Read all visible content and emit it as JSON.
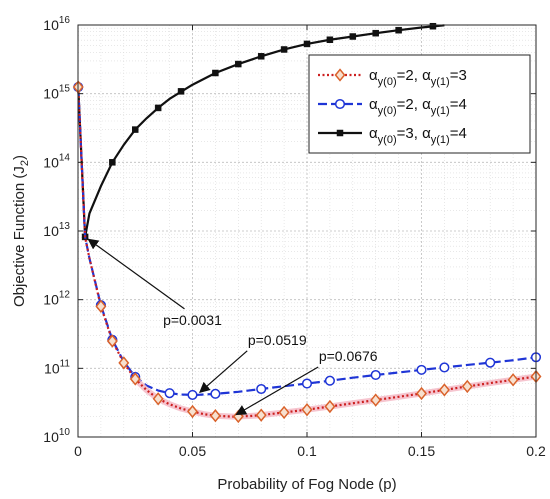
{
  "chart_data": {
    "type": "line",
    "title": "",
    "xlabel": "Probability of Fog Node (p)",
    "ylabel": "Objective Function (J",
    "ylabel_sub": "2",
    "ylabel_tail": ")",
    "yscale": "log",
    "xlim": [
      0,
      0.2
    ],
    "ylim": [
      10000000000.0,
      1e+16
    ],
    "grid": true,
    "minor_grid": true,
    "legend_position": "top-right",
    "x_ticks": [
      {
        "value": 0,
        "label": "0"
      },
      {
        "value": 0.05,
        "label": "0.05"
      },
      {
        "value": 0.1,
        "label": "0.1"
      },
      {
        "value": 0.15,
        "label": "0.15"
      },
      {
        "value": 0.2,
        "label": "0.2"
      }
    ],
    "y_ticks": [
      {
        "exp": 10,
        "base": "10",
        "sup": "10"
      },
      {
        "exp": 11,
        "base": "10",
        "sup": "11"
      },
      {
        "exp": 12,
        "base": "10",
        "sup": "12"
      },
      {
        "exp": 13,
        "base": "10",
        "sup": "13"
      },
      {
        "exp": 14,
        "base": "10",
        "sup": "14"
      },
      {
        "exp": 15,
        "base": "10",
        "sup": "15"
      },
      {
        "exp": 16,
        "base": "10",
        "sup": "16"
      }
    ],
    "series": [
      {
        "legend_label": {
          "alpha": "α",
          "sub1": "y(0)",
          "val1": "=2, ",
          "sub2": "y(1)",
          "val2": "=3"
        },
        "color": "#cc1f1f",
        "marker_color": "#d9622b",
        "marker": "diamond",
        "dash": "dotted",
        "highlight": "#f4b6c3",
        "points": [
          [
            0.0001,
            1250000000000000.0
          ],
          [
            0.0031,
            8200000000000.0
          ],
          [
            0.005,
            4000000000000.0
          ],
          [
            0.01,
            800000000000.0
          ],
          [
            0.015,
            250000000000.0
          ],
          [
            0.02,
            120000000000.0
          ],
          [
            0.025,
            70000000000.0
          ],
          [
            0.03,
            48000000000.0
          ],
          [
            0.035,
            36000000000.0
          ],
          [
            0.04,
            30000000000.0
          ],
          [
            0.045,
            26000000000.0
          ],
          [
            0.05,
            23500000000.0
          ],
          [
            0.055,
            21500000000.0
          ],
          [
            0.06,
            20400000000.0
          ],
          [
            0.0676,
            19800000000.0
          ],
          [
            0.075,
            20200000000.0
          ],
          [
            0.08,
            20800000000.0
          ],
          [
            0.09,
            22800000000.0
          ],
          [
            0.1,
            25000000000.0
          ],
          [
            0.11,
            27800000000.0
          ],
          [
            0.12,
            31000000000.0
          ],
          [
            0.13,
            34500000000.0
          ],
          [
            0.14,
            38500000000.0
          ],
          [
            0.15,
            43000000000.0
          ],
          [
            0.16,
            48500000000.0
          ],
          [
            0.17,
            54500000000.0
          ],
          [
            0.18,
            61000000000.0
          ],
          [
            0.19,
            68000000000.0
          ],
          [
            0.2,
            76000000000.0
          ]
        ],
        "marker_points": [
          [
            0.0001,
            1250000000000000.0
          ],
          [
            0.01,
            800000000000.0
          ],
          [
            0.015,
            250000000000.0
          ],
          [
            0.02,
            120000000000.0
          ],
          [
            0.025,
            70000000000.0
          ],
          [
            0.035,
            36000000000.0
          ],
          [
            0.05,
            23500000000.0
          ],
          [
            0.06,
            20400000000.0
          ],
          [
            0.07,
            19900000000.0
          ],
          [
            0.08,
            20800000000.0
          ],
          [
            0.09,
            22800000000.0
          ],
          [
            0.1,
            25000000000.0
          ],
          [
            0.11,
            27800000000.0
          ],
          [
            0.13,
            34500000000.0
          ],
          [
            0.15,
            43000000000.0
          ],
          [
            0.16,
            48500000000.0
          ],
          [
            0.17,
            54500000000.0
          ],
          [
            0.19,
            68000000000.0
          ],
          [
            0.2,
            76000000000.0
          ]
        ]
      },
      {
        "legend_label": {
          "alpha": "α",
          "sub1": "y(0)",
          "val1": "=2, ",
          "sub2": "y(1)",
          "val2": "=4"
        },
        "color": "#1f35d6",
        "marker_color": "#1f35d6",
        "marker": "circle",
        "dash": "dashed",
        "highlight": "",
        "points": [
          [
            0.0001,
            1250000000000000.0
          ],
          [
            0.0031,
            8200000000000.0
          ],
          [
            0.005,
            4000000000000.0
          ],
          [
            0.01,
            830000000000.0
          ],
          [
            0.015,
            260000000000.0
          ],
          [
            0.02,
            125000000000.0
          ],
          [
            0.025,
            75000000000.0
          ],
          [
            0.03,
            56000000000.0
          ],
          [
            0.035,
            47500000000.0
          ],
          [
            0.04,
            43500000000.0
          ],
          [
            0.045,
            41500000000.0
          ],
          [
            0.0519,
            41000000000.0
          ],
          [
            0.06,
            42500000000.0
          ],
          [
            0.07,
            45500000000.0
          ],
          [
            0.08,
            50000000000.0
          ],
          [
            0.09,
            55000000000.0
          ],
          [
            0.1,
            60000000000.0
          ],
          [
            0.11,
            66000000000.0
          ],
          [
            0.12,
            73000000000.0
          ],
          [
            0.13,
            80000000000.0
          ],
          [
            0.14,
            87000000000.0
          ],
          [
            0.15,
            95000000000.0
          ],
          [
            0.16,
            103000000000.0
          ],
          [
            0.17,
            112000000000.0
          ],
          [
            0.18,
            121000000000.0
          ],
          [
            0.19,
            131000000000.0
          ],
          [
            0.2,
            145000000000.0
          ]
        ],
        "marker_points": [
          [
            0.0001,
            1250000000000000.0
          ],
          [
            0.01,
            830000000000.0
          ],
          [
            0.015,
            260000000000.0
          ],
          [
            0.025,
            75000000000.0
          ],
          [
            0.04,
            43500000000.0
          ],
          [
            0.05,
            41000000000.0
          ],
          [
            0.06,
            42500000000.0
          ],
          [
            0.08,
            50000000000.0
          ],
          [
            0.1,
            60000000000.0
          ],
          [
            0.11,
            66000000000.0
          ],
          [
            0.13,
            80000000000.0
          ],
          [
            0.15,
            95000000000.0
          ],
          [
            0.16,
            103000000000.0
          ],
          [
            0.18,
            121000000000.0
          ],
          [
            0.2,
            145000000000.0
          ]
        ]
      },
      {
        "legend_label": {
          "alpha": "α",
          "sub1": "y(0)",
          "val1": "=3, ",
          "sub2": "y(1)",
          "val2": "=4"
        },
        "color": "#111111",
        "marker_color": "#111111",
        "marker": "square",
        "dash": "solid",
        "highlight": "",
        "points": [
          [
            0.0001,
            1250000000000000.0
          ],
          [
            0.0031,
            8200000000000.0
          ],
          [
            0.005,
            18000000000000.0
          ],
          [
            0.01,
            45000000000000.0
          ],
          [
            0.015,
            100000000000000.0
          ],
          [
            0.02,
            180000000000000.0
          ],
          [
            0.025,
            300000000000000.0
          ],
          [
            0.03,
            440000000000000.0
          ],
          [
            0.035,
            620000000000000.0
          ],
          [
            0.04,
            840000000000000.0
          ],
          [
            0.05,
            1350000000000000.0
          ],
          [
            0.06,
            2000000000000000.0
          ],
          [
            0.07,
            2700000000000000.0
          ],
          [
            0.08,
            3500000000000000.0
          ],
          [
            0.09,
            4400000000000000.0
          ],
          [
            0.1,
            5300000000000000.0
          ],
          [
            0.11,
            6100000000000000.0
          ],
          [
            0.12,
            6800000000000000.0
          ],
          [
            0.13,
            7600000000000000.0
          ],
          [
            0.14,
            8400000000000000.0
          ],
          [
            0.15,
            9200000000000000.0
          ],
          [
            0.16,
            9900000000000000.0
          ]
        ],
        "marker_points": [
          [
            0.0001,
            1250000000000000.0
          ],
          [
            0.0031,
            8200000000000.0
          ],
          [
            0.015,
            100000000000000.0
          ],
          [
            0.025,
            300000000000000.0
          ],
          [
            0.035,
            620000000000000.0
          ],
          [
            0.045,
            1080000000000000.0
          ],
          [
            0.06,
            2000000000000000.0
          ],
          [
            0.07,
            2700000000000000.0
          ],
          [
            0.08,
            3500000000000000.0
          ],
          [
            0.09,
            4400000000000000.0
          ],
          [
            0.1,
            5300000000000000.0
          ],
          [
            0.11,
            6100000000000000.0
          ],
          [
            0.12,
            6800000000000000.0
          ],
          [
            0.13,
            7600000000000000.0
          ],
          [
            0.14,
            8400000000000000.0
          ],
          [
            0.155,
            9600000000000000.0
          ]
        ]
      }
    ],
    "annotations": [
      {
        "text": "p=0.0031",
        "target": [
          0.0031,
          8200000000000.0
        ],
        "text_at": [
          0.05,
          430000000000.0
        ]
      },
      {
        "text": "p=0.0519",
        "target": [
          0.0519,
          41000000000.0
        ],
        "text_at": [
          0.087,
          220000000000.0
        ]
      },
      {
        "text": "p=0.0676",
        "target": [
          0.0676,
          19800000000.0
        ],
        "text_at": [
          0.118,
          128000000000.0
        ]
      }
    ]
  }
}
